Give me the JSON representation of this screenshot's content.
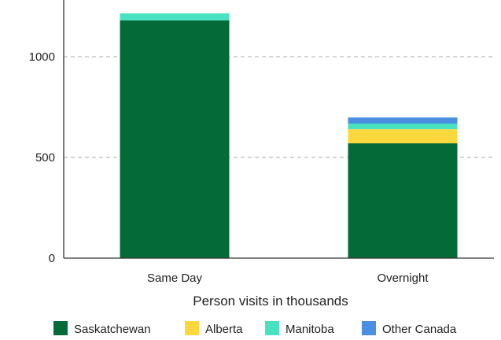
{
  "chart_data": {
    "type": "bar",
    "stacked": true,
    "title": "",
    "xlabel": "Person visits in thousands",
    "ylabel": "",
    "categories": [
      "Same Day",
      "Overnight"
    ],
    "series": [
      {
        "name": "Saskatchewan",
        "color": "#046a38",
        "values": [
          1180,
          570
        ]
      },
      {
        "name": "Alberta",
        "color": "#fcd83c",
        "values": [
          0,
          70
        ]
      },
      {
        "name": "Manitoba",
        "color": "#49e2c1",
        "values": [
          35,
          28
        ]
      },
      {
        "name": "Other Canada",
        "color": "#4a8fe0",
        "values": [
          0,
          30
        ]
      }
    ],
    "ylim": [
      0,
      1250
    ],
    "yticks": [
      0,
      500,
      1000
    ],
    "grid": "horizontal dashed",
    "legend": "bottom"
  }
}
